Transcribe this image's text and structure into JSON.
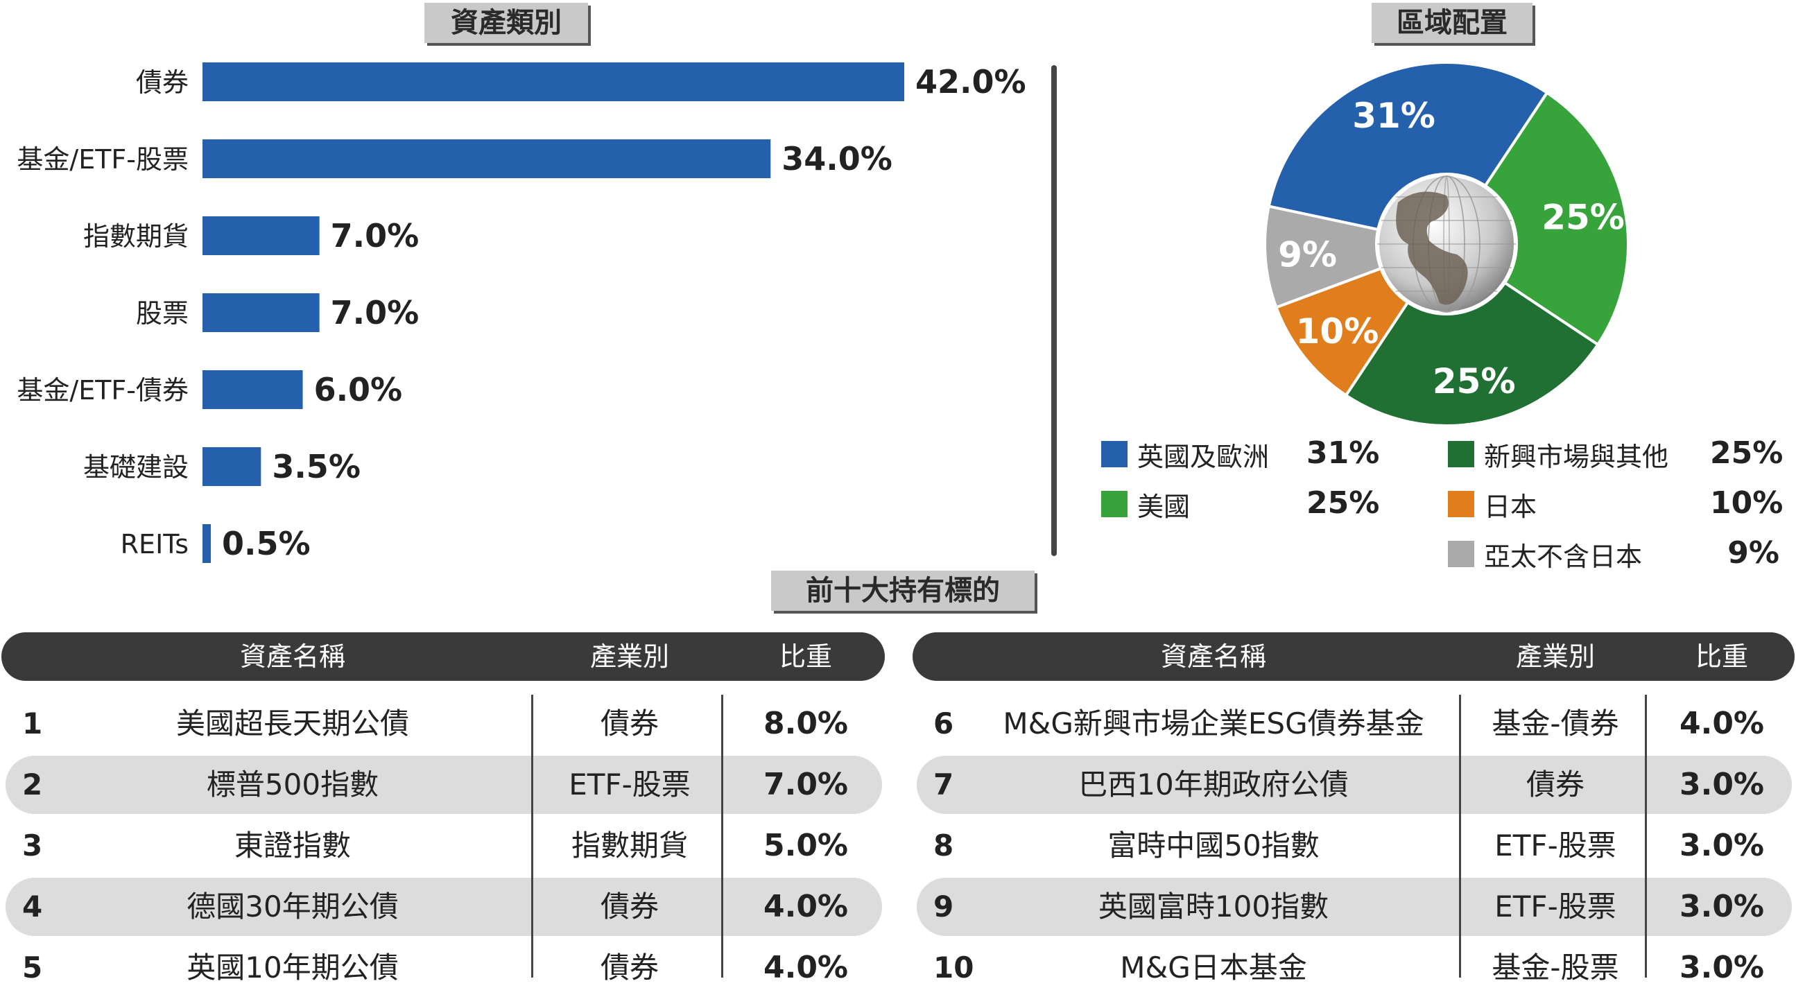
{
  "titles": {
    "asset_class": "資產類別",
    "region": "區域配置",
    "top10": "前十大持有標的"
  },
  "chart_data": [
    {
      "type": "bar",
      "orientation": "horizontal",
      "categories": [
        "債券",
        "基金/ETF-股票",
        "指數期貨",
        "股票",
        "基金/ETF-債券",
        "基礎建設",
        "REITs"
      ],
      "values": [
        42.0,
        34.0,
        7.0,
        7.0,
        6.0,
        3.5,
        0.5
      ],
      "value_labels": [
        "42.0%",
        "34.0%",
        "7.0%",
        "7.0%",
        "6.0%",
        "3.5%",
        "0.5%"
      ],
      "color": "#2460ab",
      "xlim": [
        0,
        42.0
      ],
      "grid": false
    },
    {
      "type": "pie",
      "style": "donut",
      "categories": [
        "英國及歐洲",
        "新興市場與其他",
        "美國",
        "日本",
        "亞太不含日本"
      ],
      "values": [
        31,
        25,
        25,
        10,
        9
      ],
      "slice_order": [
        "英國及歐洲",
        "美國",
        "新興市場與其他",
        "日本",
        "亞太不含日本"
      ],
      "slice_values": [
        31,
        25,
        25,
        10,
        9
      ],
      "slice_labels": [
        "31%",
        "25%",
        "25%",
        "10%",
        "9%"
      ],
      "slice_colors": [
        "#2460ab",
        "#36a33b",
        "#1f7032",
        "#e07d1d",
        "#aaaaaa"
      ],
      "center_icon": "globe-icon"
    }
  ],
  "region_legend": [
    {
      "name": "英國及歐洲",
      "value": "31%",
      "color": "#2460ab"
    },
    {
      "name": "新興市場與其他",
      "value": "25%",
      "color": "#1f7032"
    },
    {
      "name": "美國",
      "value": "25%",
      "color": "#36a33b"
    },
    {
      "name": "日本",
      "value": "10%",
      "color": "#e07d1d"
    },
    {
      "name": "亞太不含日本",
      "value": "9%",
      "color": "#aaaaaa"
    }
  ],
  "holdings_header": {
    "name": "資產名稱",
    "sector": "產業別",
    "weight": "比重"
  },
  "holdings_left": [
    {
      "rank": "1",
      "name": "美國超長天期公債",
      "sector": "債券",
      "weight": "8.0%"
    },
    {
      "rank": "2",
      "name": "標普500指數",
      "sector": "ETF-股票",
      "weight": "7.0%"
    },
    {
      "rank": "3",
      "name": "東證指數",
      "sector": "指數期貨",
      "weight": "5.0%"
    },
    {
      "rank": "4",
      "name": "德國30年期公債",
      "sector": "債券",
      "weight": "4.0%"
    },
    {
      "rank": "5",
      "name": "英國10年期公債",
      "sector": "債券",
      "weight": "4.0%"
    }
  ],
  "holdings_right": [
    {
      "rank": "6",
      "name": "M&G新興市場企業ESG債券基金",
      "sector": "基金-債券",
      "weight": "4.0%"
    },
    {
      "rank": "7",
      "name": "巴西10年期政府公債",
      "sector": "債券",
      "weight": "3.0%"
    },
    {
      "rank": "8",
      "name": "富時中國50指數",
      "sector": "ETF-股票",
      "weight": "3.0%"
    },
    {
      "rank": "9",
      "name": "英國富時100指數",
      "sector": "ETF-股票",
      "weight": "3.0%"
    },
    {
      "rank": "10",
      "name": "M&G日本基金",
      "sector": "基金-股票",
      "weight": "3.0%"
    }
  ]
}
